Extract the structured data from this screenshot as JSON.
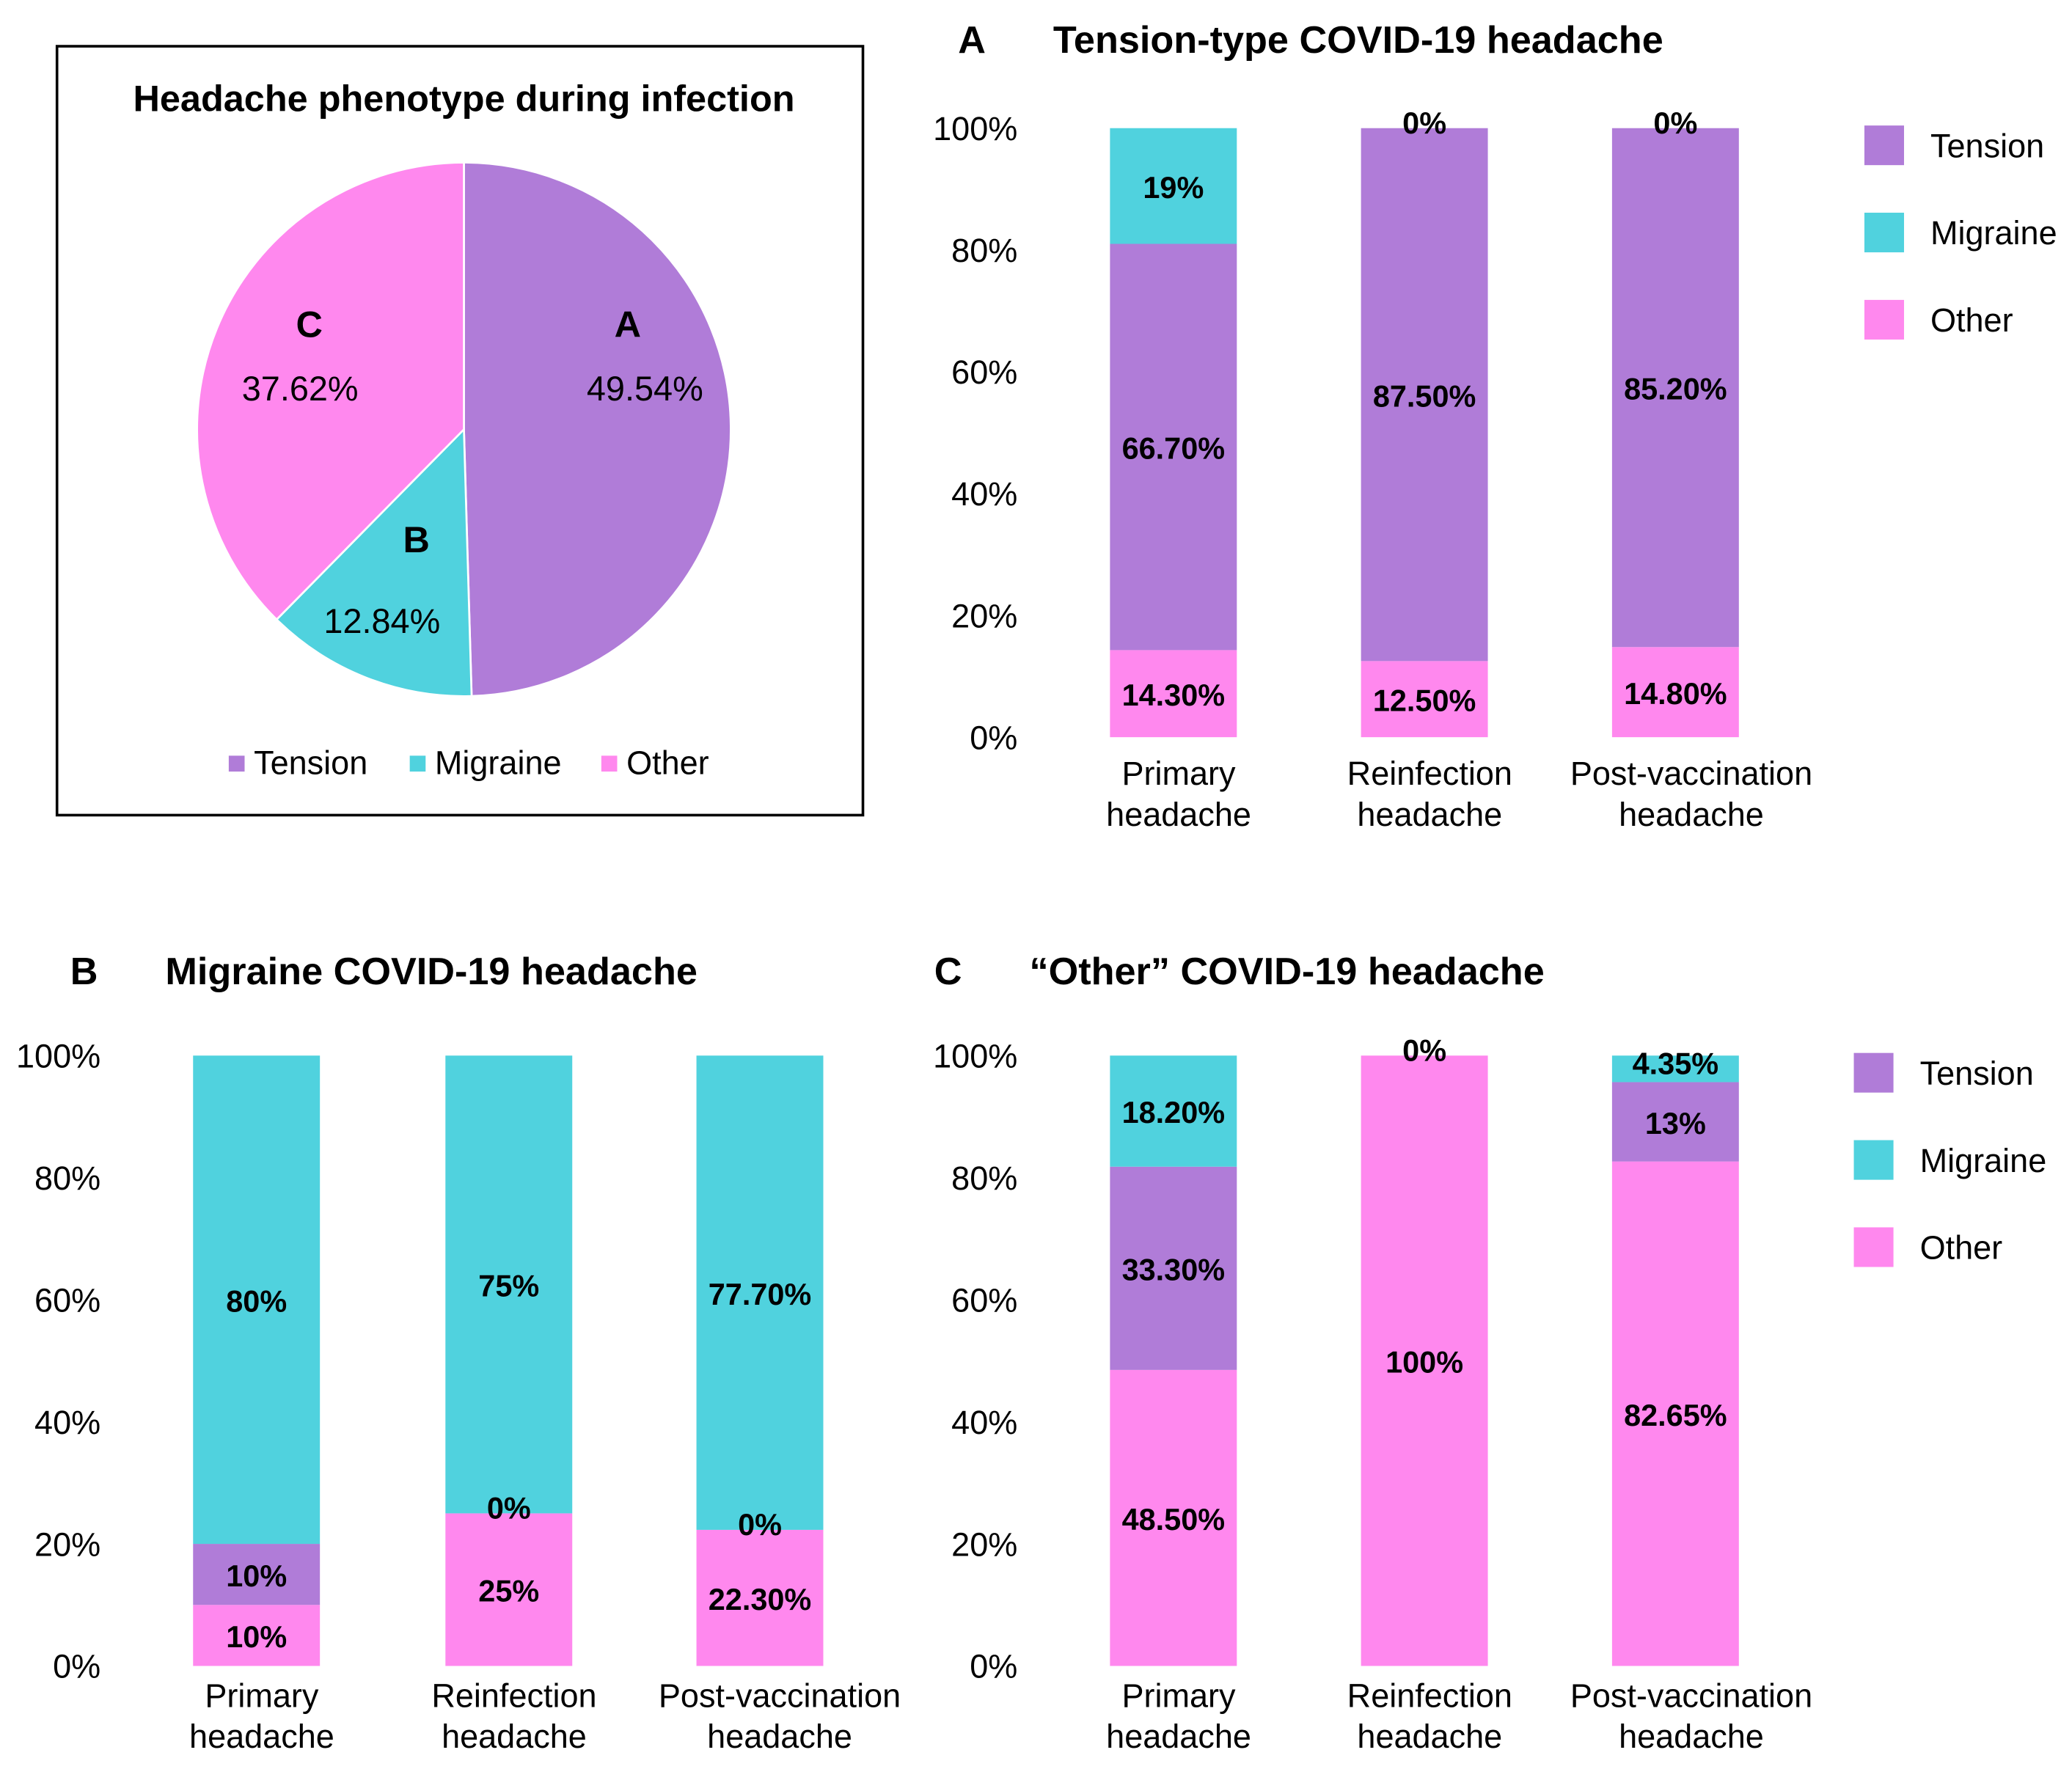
{
  "colors": {
    "Tension": "#B07CD8",
    "Migraine": "#50D2DE",
    "Other": "#FF88EE"
  },
  "chart_data": [
    {
      "type": "pie",
      "title": "Headache phenotype during infection",
      "slices": [
        {
          "name": "Tension",
          "letter": "A",
          "value": 49.54,
          "label": "49.54%"
        },
        {
          "name": "Migraine",
          "letter": "B",
          "value": 12.84,
          "label": "12.84%"
        },
        {
          "name": "Other",
          "letter": "C",
          "value": 37.62,
          "label": "37.62%"
        }
      ],
      "legend": [
        "Tension",
        "Migraine",
        "Other"
      ],
      "legend_placement": "bottom"
    },
    {
      "type": "bar",
      "stacked": true,
      "panel": "A",
      "title": "Tension-type COVID-19 headache",
      "categories": [
        [
          "Primary",
          "headache"
        ],
        [
          "Reinfection",
          "headache"
        ],
        [
          "Post-vaccination",
          "headache"
        ]
      ],
      "series": [
        {
          "name": "Other",
          "values": [
            14.3,
            12.5,
            14.8
          ],
          "labels": [
            "14.30%",
            "12.50%",
            "14.80%"
          ]
        },
        {
          "name": "Tension",
          "values": [
            66.7,
            87.5,
            85.2
          ],
          "labels": [
            "66.70%",
            "87.50%",
            "85.20%"
          ]
        },
        {
          "name": "Migraine",
          "values": [
            19,
            0,
            0
          ],
          "labels": [
            "19%",
            "0%",
            "0%"
          ]
        }
      ],
      "yticks": [
        "0%",
        "20%",
        "40%",
        "60%",
        "80%",
        "100%"
      ],
      "ylim": [
        0,
        100
      ],
      "legend": [
        "Tension",
        "Migraine",
        "Other"
      ],
      "legend_placement": "right"
    },
    {
      "type": "bar",
      "stacked": true,
      "panel": "B",
      "title": "Migraine COVID-19 headache",
      "categories": [
        [
          "Primary",
          "headache"
        ],
        [
          "Reinfection",
          "headache"
        ],
        [
          "Post-vaccination",
          "headache"
        ]
      ],
      "series": [
        {
          "name": "Other",
          "values": [
            10,
            25,
            22.3
          ],
          "labels": [
            "10%",
            "25%",
            "22.30%"
          ]
        },
        {
          "name": "Tension",
          "values": [
            10,
            0,
            0
          ],
          "labels": [
            "10%",
            "0%",
            "0%"
          ]
        },
        {
          "name": "Migraine",
          "values": [
            80,
            75,
            77.7
          ],
          "labels": [
            "80%",
            "75%",
            "77.70%"
          ]
        }
      ],
      "yticks": [
        "0%",
        "20%",
        "40%",
        "60%",
        "80%",
        "100%"
      ],
      "ylim": [
        0,
        100
      ],
      "legend": [],
      "legend_placement": "none"
    },
    {
      "type": "bar",
      "stacked": true,
      "panel": "C",
      "title": "“Other” COVID-19 headache",
      "categories": [
        [
          "Primary",
          "headache"
        ],
        [
          "Reinfection",
          "headache"
        ],
        [
          "Post-vaccination",
          "headache"
        ]
      ],
      "series": [
        {
          "name": "Other",
          "values": [
            48.5,
            100,
            82.65
          ],
          "labels": [
            "48.50%",
            "100%",
            "82.65%"
          ]
        },
        {
          "name": "Tension",
          "values": [
            33.3,
            0,
            13
          ],
          "labels": [
            "33.30%",
            "",
            "13%"
          ]
        },
        {
          "name": "Migraine",
          "values": [
            18.2,
            0,
            4.35
          ],
          "labels": [
            "18.20%",
            "0%",
            "4.35%"
          ]
        }
      ],
      "yticks": [
        "0%",
        "20%",
        "40%",
        "60%",
        "80%",
        "100%"
      ],
      "ylim": [
        0,
        100
      ],
      "legend": [
        "Tension",
        "Migraine",
        "Other"
      ],
      "legend_placement": "right"
    }
  ]
}
